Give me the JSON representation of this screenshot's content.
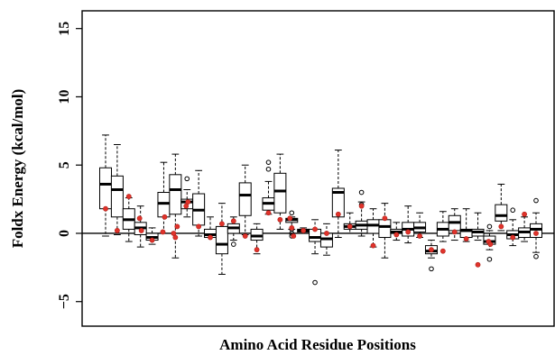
{
  "chart_data": {
    "type": "boxplot",
    "xlabel": "Amino Acid Residue Positions",
    "ylabel": "Foldx Energy (kcal/mol)",
    "ylim": [
      -6.8,
      16.3
    ],
    "y_ticks": [
      -5,
      0,
      5,
      10,
      15
    ],
    "reference_line_y": 0,
    "grid": false,
    "colors": {
      "box": "#000000",
      "median": "#000000",
      "observed_point": "#e0332b",
      "outlier": "#000000"
    },
    "boxes": [
      {
        "min": -0.2,
        "q1": 1.8,
        "median": 3.6,
        "q3": 4.8,
        "max": 7.2,
        "outliers": [],
        "observed": [
          1.8
        ]
      },
      {
        "min": -0.1,
        "q1": 1.2,
        "median": 3.2,
        "q3": 4.2,
        "max": 6.5,
        "outliers": [],
        "observed": [
          0.2
        ]
      },
      {
        "min": -0.6,
        "q1": 0.3,
        "median": 1.0,
        "q3": 1.8,
        "max": 2.6,
        "outliers": [],
        "observed": [
          2.7
        ]
      },
      {
        "min": -1.0,
        "q1": -0.1,
        "median": 0.4,
        "q3": 0.8,
        "max": 2.0,
        "outliers": [],
        "observed": [
          1.1,
          0.2
        ]
      },
      {
        "min": -0.8,
        "q1": -0.5,
        "median": -0.3,
        "q3": 0.0,
        "max": 0.4,
        "outliers": [],
        "observed": [
          -0.5
        ]
      },
      {
        "min": 0.0,
        "q1": 1.2,
        "median": 2.2,
        "q3": 3.0,
        "max": 5.2,
        "outliers": [],
        "observed": [
          0.1,
          1.2
        ]
      },
      {
        "min": -1.8,
        "q1": 1.4,
        "median": 3.2,
        "q3": 4.3,
        "max": 5.8,
        "outliers": [],
        "observed": [
          0.0,
          -0.3,
          0.5
        ]
      },
      {
        "min": 1.2,
        "q1": 1.8,
        "median": 2.3,
        "q3": 2.5,
        "max": 3.2,
        "outliers": [
          4.0
        ],
        "observed": [
          2.0,
          2.3
        ]
      },
      {
        "min": -0.2,
        "q1": 0.6,
        "median": 1.7,
        "q3": 2.9,
        "max": 4.6,
        "outliers": [],
        "observed": [
          0.5
        ]
      },
      {
        "min": -0.3,
        "q1": -0.3,
        "median": -0.1,
        "q3": 0.3,
        "max": 1.2,
        "outliers": [],
        "observed": [
          -0.3
        ]
      },
      {
        "min": -3.0,
        "q1": -1.5,
        "median": -0.8,
        "q3": 0.5,
        "max": 2.2,
        "outliers": [],
        "observed": [
          0.7
        ]
      },
      {
        "min": -0.5,
        "q1": 0.0,
        "median": 0.4,
        "q3": 0.7,
        "max": 1.2,
        "outliers": [
          -0.8
        ],
        "observed": [
          0.9
        ]
      },
      {
        "min": -0.1,
        "q1": 1.3,
        "median": 2.8,
        "q3": 3.7,
        "max": 5.0,
        "outliers": [],
        "observed": [
          -0.2
        ]
      },
      {
        "min": -1.5,
        "q1": -0.5,
        "median": -0.2,
        "q3": 0.3,
        "max": 0.7,
        "outliers": [],
        "observed": [
          -1.2
        ]
      },
      {
        "min": 1.4,
        "q1": 1.7,
        "median": 2.2,
        "q3": 2.6,
        "max": 3.8,
        "outliers": [
          5.2,
          4.7
        ],
        "observed": [
          1.5
        ]
      },
      {
        "min": 0.3,
        "q1": 1.5,
        "median": 3.1,
        "q3": 4.4,
        "max": 5.8,
        "outliers": [],
        "observed": [
          1.0
        ]
      },
      {
        "min": 0.3,
        "q1": 0.8,
        "median": 1.0,
        "q3": 1.1,
        "max": 1.2,
        "outliers": [
          1.5,
          0.3,
          0.0,
          -0.2
        ],
        "observed": [
          1.1,
          0.4,
          -0.2
        ]
      },
      {
        "min": 0.0,
        "q1": 0.1,
        "median": 0.2,
        "q3": 0.3,
        "max": 0.4,
        "outliers": [],
        "observed": [
          0.2
        ]
      },
      {
        "min": -1.5,
        "q1": -0.6,
        "median": -0.3,
        "q3": 0.3,
        "max": 1.0,
        "outliers": [
          -3.6
        ],
        "observed": [
          0.3
        ]
      },
      {
        "min": -1.6,
        "q1": -1.0,
        "median": -0.4,
        "q3": 0.0,
        "max": 0.7,
        "outliers": [],
        "observed": [
          0.0
        ]
      },
      {
        "min": -0.3,
        "q1": 1.2,
        "median": 3.0,
        "q3": 3.3,
        "max": 6.1,
        "outliers": [],
        "observed": [
          1.4
        ]
      },
      {
        "min": 0.0,
        "q1": 0.3,
        "median": 0.5,
        "q3": 0.7,
        "max": 1.5,
        "outliers": [],
        "observed": [
          0.5
        ]
      },
      {
        "min": -0.2,
        "q1": 0.3,
        "median": 0.6,
        "q3": 0.9,
        "max": 2.3,
        "outliers": [
          3.0,
          2.1
        ],
        "observed": [
          2.0
        ]
      },
      {
        "min": -1.0,
        "q1": 0.0,
        "median": 0.6,
        "q3": 1.0,
        "max": 1.8,
        "outliers": [],
        "observed": [
          -0.9
        ]
      },
      {
        "min": -1.8,
        "q1": -0.3,
        "median": 0.5,
        "q3": 1.0,
        "max": 2.2,
        "outliers": [],
        "observed": [
          1.1
        ]
      },
      {
        "min": -0.5,
        "q1": 0.0,
        "median": 0.1,
        "q3": 0.3,
        "max": 0.8,
        "outliers": [],
        "observed": [
          -0.1
        ]
      },
      {
        "min": -0.7,
        "q1": -0.2,
        "median": 0.3,
        "q3": 0.8,
        "max": 2.0,
        "outliers": [],
        "observed": [
          0.1
        ]
      },
      {
        "min": -0.3,
        "q1": 0.1,
        "median": 0.4,
        "q3": 0.8,
        "max": 1.5,
        "outliers": [],
        "observed": [
          -0.2
        ]
      },
      {
        "min": -1.8,
        "q1": -1.5,
        "median": -1.3,
        "q3": -0.9,
        "max": -0.5,
        "outliers": [
          -2.6
        ],
        "observed": [
          -1.2
        ]
      },
      {
        "min": -0.6,
        "q1": -0.2,
        "median": 0.3,
        "q3": 0.8,
        "max": 1.6,
        "outliers": [],
        "observed": [
          -1.3
        ]
      },
      {
        "min": -0.5,
        "q1": 0.2,
        "median": 0.8,
        "q3": 1.3,
        "max": 1.8,
        "outliers": [],
        "observed": [
          0.1
        ]
      },
      {
        "min": -0.6,
        "q1": -0.3,
        "median": 0.2,
        "q3": 0.3,
        "max": 1.8,
        "outliers": [],
        "observed": [
          -0.4
        ]
      },
      {
        "min": -0.5,
        "q1": -0.2,
        "median": 0.1,
        "q3": 0.3,
        "max": 1.5,
        "outliers": [],
        "observed": [
          -2.3
        ]
      },
      {
        "min": -1.2,
        "q1": -0.8,
        "median": -0.6,
        "q3": -0.2,
        "max": 0.2,
        "outliers": [
          -1.9,
          0.5
        ],
        "observed": [
          -0.6,
          -0.8
        ]
      },
      {
        "min": 0.2,
        "q1": 0.9,
        "median": 1.3,
        "q3": 2.1,
        "max": 3.6,
        "outliers": [],
        "observed": [
          0.5
        ]
      },
      {
        "min": -0.9,
        "q1": -0.4,
        "median": -0.1,
        "q3": 0.2,
        "max": 1.0,
        "outliers": [
          1.7
        ],
        "observed": [
          -0.3
        ]
      },
      {
        "min": -0.6,
        "q1": -0.3,
        "median": 0.1,
        "q3": 0.4,
        "max": 1.2,
        "outliers": [],
        "observed": [
          1.4
        ]
      },
      {
        "min": -1.4,
        "q1": -0.3,
        "median": 0.3,
        "q3": 0.7,
        "max": 1.5,
        "outliers": [
          2.4,
          -1.7
        ],
        "observed": [
          0.0
        ]
      }
    ]
  }
}
